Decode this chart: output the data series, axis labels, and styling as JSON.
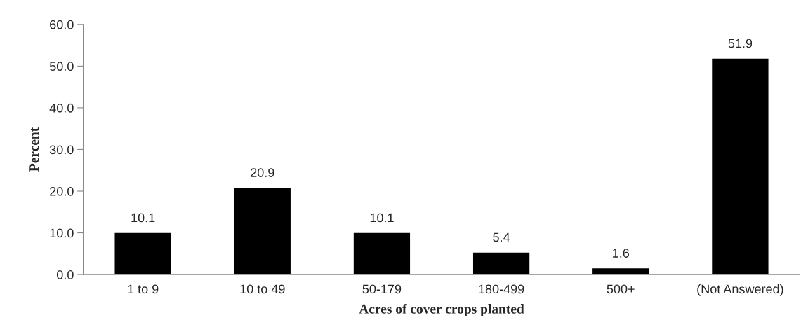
{
  "chart_data": {
    "type": "bar",
    "xlabel": "Acres of cover crops planted",
    "ylabel": "Percent",
    "categories": [
      "1 to 9",
      "10 to 49",
      "50-179",
      "180-499",
      "500+",
      "(Not Answered)"
    ],
    "values": [
      10.1,
      20.9,
      10.1,
      5.4,
      1.6,
      51.9
    ],
    "color": "#000000",
    "ylim": [
      0,
      60
    ],
    "yticks": [
      {
        "value": 0,
        "label": "0.0"
      },
      {
        "value": 10,
        "label": "10.0"
      },
      {
        "value": 20,
        "label": "20.0"
      },
      {
        "value": 30,
        "label": "30.0"
      },
      {
        "value": 40,
        "label": "40.0"
      },
      {
        "value": 50,
        "label": "50.0"
      },
      {
        "value": 60,
        "label": "60.0"
      }
    ],
    "data_labels": true,
    "grid": false,
    "legend": false
  }
}
